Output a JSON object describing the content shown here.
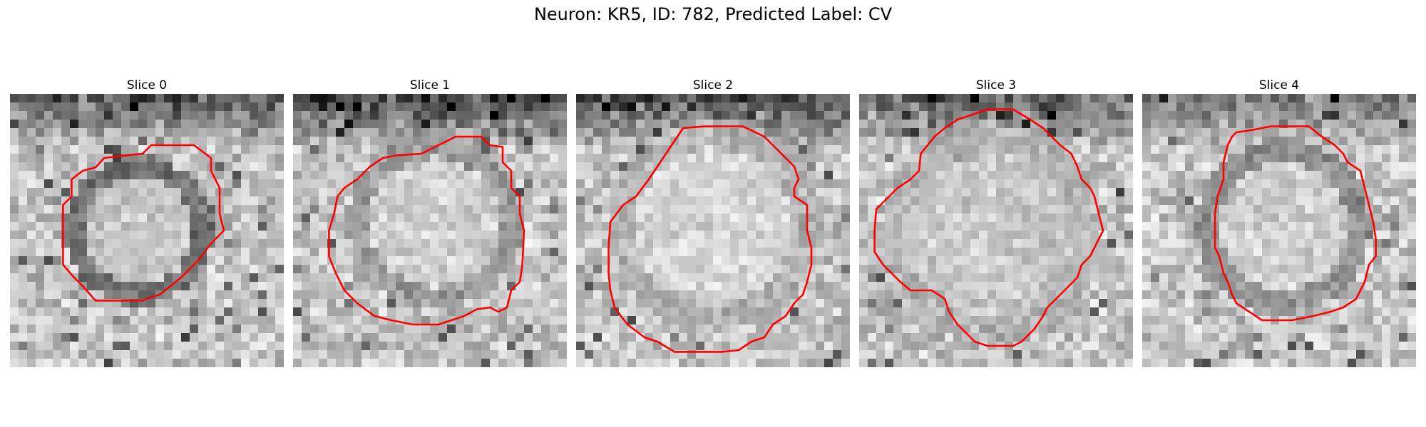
{
  "figure": {
    "title": "Neuron: KR5, ID: 782, Predicted Label: CV",
    "contour_color": "#ff0000",
    "colormap": "gray"
  },
  "slices": [
    {
      "label": "Slice 0"
    },
    {
      "label": "Slice 1"
    },
    {
      "label": "Slice 2"
    },
    {
      "label": "Slice 3"
    },
    {
      "label": "Slice 4"
    }
  ]
}
